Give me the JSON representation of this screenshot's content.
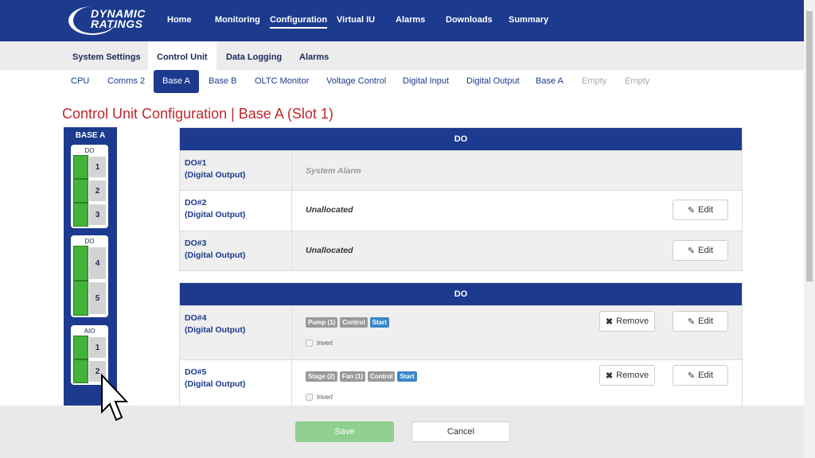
{
  "header": {
    "logo_line1": "DYNAMIC",
    "logo_line2": "RATINGS",
    "nav": [
      "Home",
      "Monitoring",
      "Configuration",
      "Virtual IU",
      "Alarms",
      "Downloads",
      "Summary"
    ],
    "active_nav": "Configuration"
  },
  "tabs": [
    "System Settings",
    "Control Unit",
    "Data Logging",
    "Alarms"
  ],
  "subtabs": [
    "CPU",
    "Comms 2",
    "Base A",
    "Base B",
    "OLTC Monitor",
    "Voltage Control",
    "Digital Input",
    "Digital Output",
    "Base A",
    "Empty",
    "Empty"
  ],
  "title": "Control Unit Configuration | Base A (Slot 1)",
  "panel": {
    "title": "BASE A",
    "groups": [
      {
        "label": "DO",
        "slots": [
          "1",
          "2",
          "3"
        ]
      },
      {
        "label": "DO",
        "slots": [
          "4",
          "5"
        ]
      },
      {
        "label": "AIO",
        "slots": [
          "1",
          "2"
        ]
      }
    ]
  },
  "table1": {
    "header": "DO",
    "rows": [
      {
        "id": "DO#1",
        "type": "(Digital Output)",
        "value": "System Alarm"
      },
      {
        "id": "DO#2",
        "type": "(Digital Output)",
        "value": "Unallocated",
        "edit": "Edit"
      },
      {
        "id": "DO#3",
        "type": "(Digital Output)",
        "value": "Unallocated",
        "edit": "Edit"
      }
    ]
  },
  "table2": {
    "header": "DO",
    "rows": [
      {
        "id": "DO#4",
        "type": "(Digital Output)",
        "badges": [
          "Pump (1)",
          "Control",
          "Start"
        ],
        "invert": "Invert",
        "remove": "Remove",
        "edit": "Edit"
      },
      {
        "id": "DO#5",
        "type": "(Digital Output)",
        "badges": [
          "Stage (2)",
          "Fan (1)",
          "Control",
          "Start"
        ],
        "invert": "Invert",
        "remove": "Remove",
        "edit": "Edit"
      }
    ]
  },
  "footer": {
    "save": "Save",
    "cancel": "Cancel"
  },
  "colors": {
    "brand": "#1c3a8e",
    "title": "#c1272d",
    "slot_active": "#44b33a",
    "badge_blue": "#3a87c8"
  }
}
